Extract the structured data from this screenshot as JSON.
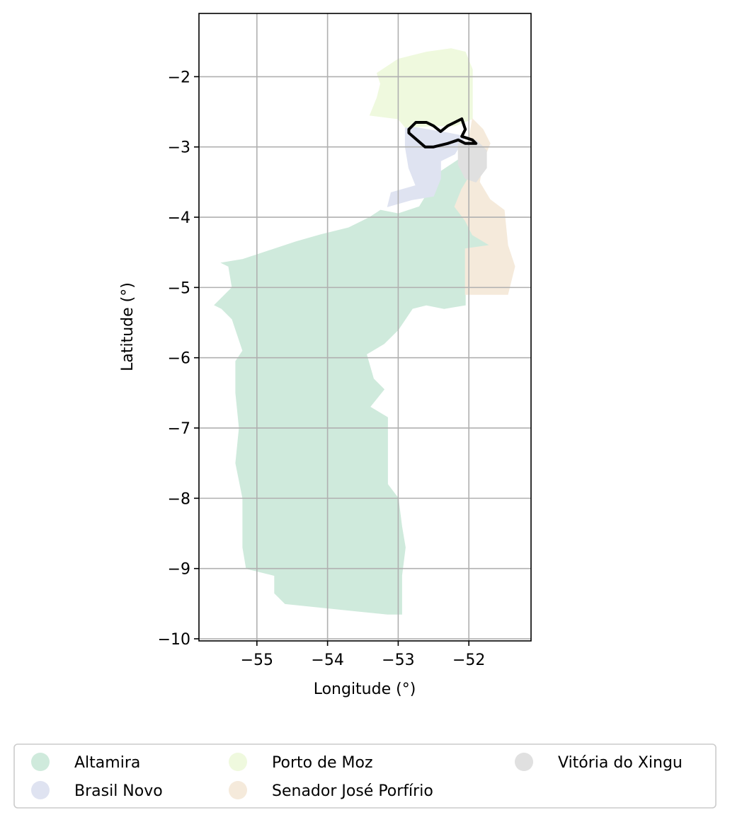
{
  "chart_data": {
    "type": "choropleth-map",
    "xlabel": "Longitude (°)",
    "ylabel": "Latitude (°)",
    "xlim": [
      -55.82,
      -51.12
    ],
    "ylim": [
      -10.03,
      -1.1
    ],
    "x_ticks": [
      -55,
      -54,
      -53,
      -52
    ],
    "y_ticks": [
      -2,
      -3,
      -4,
      -5,
      -6,
      -7,
      -8,
      -9,
      -10
    ],
    "x_tick_labels": [
      "−55",
      "−54",
      "−53",
      "−52"
    ],
    "y_tick_labels": [
      "−2",
      "−3",
      "−4",
      "−5",
      "−6",
      "−7",
      "−8",
      "−9",
      "−10"
    ],
    "grid": true,
    "legend_position": "bottom",
    "regions": [
      {
        "name": "Altamira",
        "color": "#cfeadc",
        "outline": [
          [
            -53.0,
            -3.95
          ],
          [
            -52.7,
            -3.85
          ],
          [
            -52.4,
            -3.35
          ],
          [
            -52.1,
            -3.15
          ],
          [
            -51.95,
            -3.35
          ],
          [
            -52.05,
            -3.55
          ],
          [
            -52.2,
            -3.85
          ],
          [
            -52.05,
            -4.05
          ],
          [
            -51.95,
            -4.25
          ],
          [
            -51.7,
            -4.4
          ],
          [
            -51.95,
            -4.45
          ],
          [
            -52.05,
            -4.8
          ],
          [
            -52.05,
            -5.25
          ],
          [
            -52.35,
            -5.3
          ],
          [
            -52.6,
            -5.25
          ],
          [
            -52.8,
            -5.3
          ],
          [
            -53.0,
            -5.6
          ],
          [
            -53.2,
            -5.8
          ],
          [
            -53.45,
            -5.95
          ],
          [
            -53.35,
            -6.3
          ],
          [
            -53.2,
            -6.45
          ],
          [
            -53.4,
            -6.7
          ],
          [
            -53.15,
            -6.85
          ],
          [
            -53.15,
            -7.45
          ],
          [
            -53.15,
            -7.8
          ],
          [
            -53.0,
            -8.0
          ],
          [
            -52.95,
            -8.4
          ],
          [
            -52.9,
            -8.7
          ],
          [
            -52.95,
            -9.1
          ],
          [
            -52.95,
            -9.45
          ],
          [
            -52.95,
            -9.65
          ],
          [
            -53.15,
            -9.65
          ],
          [
            -54.6,
            -9.5
          ],
          [
            -54.75,
            -9.35
          ],
          [
            -54.75,
            -9.1
          ],
          [
            -55.15,
            -9.0
          ],
          [
            -55.2,
            -8.7
          ],
          [
            -55.2,
            -8.0
          ],
          [
            -55.3,
            -7.5
          ],
          [
            -55.25,
            -7.0
          ],
          [
            -55.3,
            -6.5
          ],
          [
            -55.3,
            -6.05
          ],
          [
            -55.2,
            -5.9
          ],
          [
            -55.35,
            -5.45
          ],
          [
            -55.5,
            -5.3
          ],
          [
            -55.6,
            -5.25
          ],
          [
            -55.35,
            -5.0
          ],
          [
            -55.4,
            -4.7
          ],
          [
            -55.5,
            -4.65
          ],
          [
            -55.2,
            -4.6
          ],
          [
            -54.9,
            -4.5
          ],
          [
            -54.45,
            -4.35
          ],
          [
            -54.1,
            -4.25
          ],
          [
            -53.7,
            -4.15
          ],
          [
            -53.4,
            -4.0
          ],
          [
            -53.25,
            -3.9
          ]
        ]
      },
      {
        "name": "Brasil Novo",
        "color": "#dfe3f1",
        "outline": [
          [
            -52.9,
            -2.7
          ],
          [
            -52.6,
            -2.75
          ],
          [
            -52.3,
            -2.8
          ],
          [
            -52.05,
            -2.85
          ],
          [
            -52.2,
            -3.1
          ],
          [
            -52.4,
            -3.2
          ],
          [
            -52.4,
            -3.45
          ],
          [
            -52.5,
            -3.7
          ],
          [
            -52.8,
            -3.75
          ],
          [
            -53.15,
            -3.85
          ],
          [
            -53.1,
            -3.65
          ],
          [
            -52.75,
            -3.55
          ],
          [
            -52.85,
            -3.3
          ],
          [
            -52.9,
            -3.0
          ]
        ]
      },
      {
        "name": "Porto de Moz",
        "color": "#eff9de",
        "outline": [
          [
            -53.3,
            -1.95
          ],
          [
            -53.0,
            -1.75
          ],
          [
            -52.6,
            -1.65
          ],
          [
            -52.25,
            -1.6
          ],
          [
            -52.05,
            -1.65
          ],
          [
            -51.95,
            -1.9
          ],
          [
            -51.95,
            -2.35
          ],
          [
            -51.95,
            -2.6
          ],
          [
            -52.2,
            -2.7
          ],
          [
            -52.5,
            -2.7
          ],
          [
            -52.9,
            -2.72
          ],
          [
            -53.0,
            -2.6
          ],
          [
            -53.4,
            -2.55
          ],
          [
            -53.3,
            -2.3
          ],
          [
            -53.25,
            -2.1
          ]
        ]
      },
      {
        "name": "Senador José Porfírio",
        "color": "#f5eadb",
        "outline": [
          [
            -51.95,
            -2.6
          ],
          [
            -51.8,
            -2.75
          ],
          [
            -51.7,
            -2.95
          ],
          [
            -51.8,
            -3.2
          ],
          [
            -51.85,
            -3.5
          ],
          [
            -51.7,
            -3.75
          ],
          [
            -51.5,
            -3.9
          ],
          [
            -51.45,
            -4.4
          ],
          [
            -51.35,
            -4.7
          ],
          [
            -51.45,
            -5.1
          ],
          [
            -52.05,
            -5.1
          ],
          [
            -52.05,
            -4.75
          ],
          [
            -52.05,
            -4.45
          ],
          [
            -51.7,
            -4.4
          ],
          [
            -51.95,
            -4.25
          ],
          [
            -52.05,
            -4.05
          ],
          [
            -52.2,
            -3.85
          ],
          [
            -52.1,
            -3.6
          ],
          [
            -51.95,
            -3.35
          ],
          [
            -52.1,
            -3.15
          ],
          [
            -52.0,
            -2.9
          ]
        ]
      },
      {
        "name": "Vitória do Xingu",
        "color": "#e0e0e0",
        "outline": [
          [
            -52.15,
            -2.95
          ],
          [
            -51.9,
            -2.9
          ],
          [
            -51.75,
            -3.05
          ],
          [
            -51.75,
            -3.3
          ],
          [
            -51.9,
            -3.5
          ],
          [
            -52.05,
            -3.45
          ],
          [
            -52.15,
            -3.25
          ]
        ]
      }
    ],
    "highlight_outline": [
      [
        -52.85,
        -2.75
      ],
      [
        -52.75,
        -2.65
      ],
      [
        -52.6,
        -2.65
      ],
      [
        -52.5,
        -2.7
      ],
      [
        -52.4,
        -2.78
      ],
      [
        -52.3,
        -2.7
      ],
      [
        -52.2,
        -2.65
      ],
      [
        -52.1,
        -2.6
      ],
      [
        -52.05,
        -2.75
      ],
      [
        -52.1,
        -2.85
      ],
      [
        -51.95,
        -2.9
      ],
      [
        -51.9,
        -2.95
      ],
      [
        -52.05,
        -2.95
      ],
      [
        -52.15,
        -2.9
      ],
      [
        -52.3,
        -2.95
      ],
      [
        -52.5,
        -3.0
      ],
      [
        -52.62,
        -3.0
      ],
      [
        -52.85,
        -2.8
      ]
    ],
    "legend": [
      {
        "label": "Altamira",
        "color": "#cfeadc"
      },
      {
        "label": "Brasil Novo",
        "color": "#dfe3f1"
      },
      {
        "label": "Porto de Moz",
        "color": "#eff9de"
      },
      {
        "label": "Senador José Porfírio",
        "color": "#f5eadb"
      },
      {
        "label": "Vitória do Xingu",
        "color": "#e0e0e0"
      }
    ]
  }
}
